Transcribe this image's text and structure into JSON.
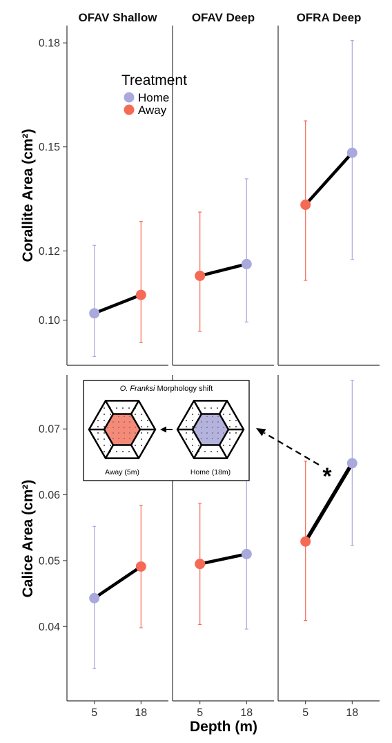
{
  "chart_data": [
    {
      "type": "line",
      "panel": "top",
      "ylabel": "Corallite Area (cm²)",
      "xlabel": "",
      "ylim": [
        0.087,
        0.185
      ],
      "yticks": [
        "0.10",
        "0.12",
        "0.15",
        "0.18"
      ],
      "ytick_values": [
        0.1,
        0.12,
        0.15,
        0.18
      ],
      "facets": [
        {
          "title": "OFAV Shallow",
          "x": [
            "5",
            "18"
          ],
          "points": [
            {
              "x": "5",
              "y": 0.102,
              "lower": 0.0895,
              "upper": 0.1216,
              "treatment": "Home"
            },
            {
              "x": "18",
              "y": 0.1073,
              "lower": 0.0935,
              "upper": 0.1285,
              "treatment": "Away"
            }
          ]
        },
        {
          "title": "OFAV Deep",
          "x": [
            "5",
            "18"
          ],
          "points": [
            {
              "x": "5",
              "y": 0.1128,
              "lower": 0.0968,
              "upper": 0.1312,
              "treatment": "Away"
            },
            {
              "x": "18",
              "y": 0.1162,
              "lower": 0.0995,
              "upper": 0.1408,
              "treatment": "Home"
            }
          ]
        },
        {
          "title": "OFRA Deep",
          "x": [
            "5",
            "18"
          ],
          "points": [
            {
              "x": "5",
              "y": 0.1333,
              "lower": 0.1115,
              "upper": 0.1575,
              "treatment": "Away"
            },
            {
              "x": "18",
              "y": 0.1483,
              "lower": 0.1175,
              "upper": 0.1807,
              "treatment": "Home"
            }
          ]
        }
      ]
    },
    {
      "type": "line",
      "panel": "bottom",
      "ylabel": "Calice Area (cm²)",
      "xlabel": "Depth (m)",
      "ylim": [
        0.0287,
        0.0782
      ],
      "yticks": [
        "0.04",
        "0.05",
        "0.06",
        "0.07"
      ],
      "ytick_values": [
        0.04,
        0.05,
        0.06,
        0.07
      ],
      "xticks": [
        "5",
        "18"
      ],
      "facets": [
        {
          "title": "",
          "x": [
            "5",
            "18"
          ],
          "points": [
            {
              "x": "5",
              "y": 0.0443,
              "lower": 0.0336,
              "upper": 0.0552,
              "treatment": "Home"
            },
            {
              "x": "18",
              "y": 0.0491,
              "lower": 0.0398,
              "upper": 0.0584,
              "treatment": "Away"
            }
          ]
        },
        {
          "title": "",
          "x": [
            "5",
            "18"
          ],
          "points": [
            {
              "x": "5",
              "y": 0.0495,
              "lower": 0.0403,
              "upper": 0.0587,
              "treatment": "Away"
            },
            {
              "x": "18",
              "y": 0.051,
              "lower": 0.0396,
              "upper": 0.0623,
              "treatment": "Home"
            }
          ]
        },
        {
          "title": "",
          "x": [
            "5",
            "18"
          ],
          "points": [
            {
              "x": "5",
              "y": 0.0529,
              "lower": 0.0409,
              "upper": 0.0651,
              "treatment": "Away"
            },
            {
              "x": "18",
              "y": 0.0648,
              "lower": 0.0523,
              "upper": 0.0774,
              "treatment": "Home"
            }
          ]
        }
      ],
      "annotation": {
        "text": "*"
      }
    }
  ],
  "legend": {
    "title": "Treatment",
    "placement": "top-left",
    "items": [
      {
        "label": "Home",
        "color": "#a9a9dd"
      },
      {
        "label": "Away",
        "color": "#f56a55"
      }
    ]
  },
  "colors": {
    "Home": "#a9a9dd",
    "Away": "#f56a55",
    "line": "#000000"
  },
  "inset": {
    "title_italic": "O. Franksi",
    "title_rest": " Morphology shift",
    "away_label": "Away (5m)",
    "home_label": "Home (18m)",
    "away_color": "#f58a78",
    "home_color": "#b3b3dd"
  }
}
